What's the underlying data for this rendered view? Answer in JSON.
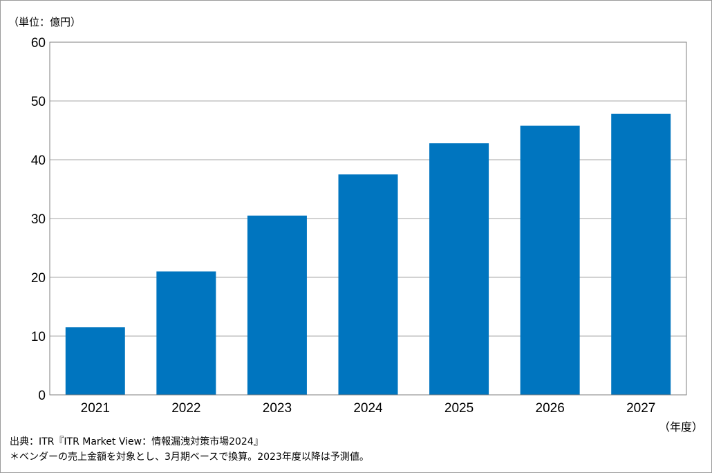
{
  "chart_data": {
    "type": "bar",
    "unit_label": "（単位：億円）",
    "x_unit_label": "（年度）",
    "categories": [
      "2021",
      "2022",
      "2023",
      "2024",
      "2025",
      "2026",
      "2027"
    ],
    "values": [
      11.5,
      21.0,
      30.5,
      37.5,
      42.8,
      45.8,
      47.8
    ],
    "ylim": [
      0,
      60
    ],
    "yticks": [
      "0",
      "10",
      "20",
      "30",
      "40",
      "50",
      "60"
    ],
    "grid": true,
    "bar_color": "#0075BF",
    "title": "",
    "xlabel": "",
    "ylabel": ""
  },
  "footer": {
    "source": "出典：ITR『ITR Market View：情報漏洩対策市場2024』",
    "note": "＊ベンダーの売上金額を対象とし、3月期ベースで換算。2023年度以降は予測値。"
  }
}
